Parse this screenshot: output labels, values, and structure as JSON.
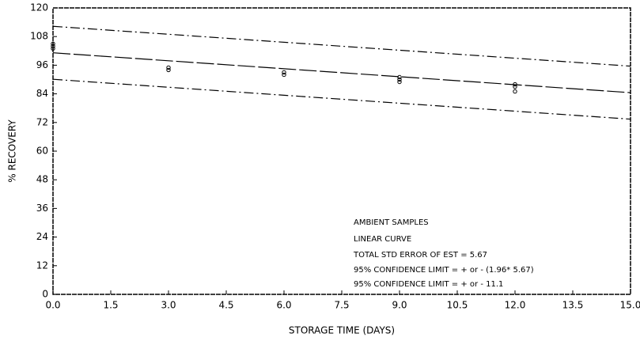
{
  "chart_data": {
    "type": "scatter",
    "x_label": "STORAGE TIME (DAYS)",
    "y_label": "% RECOVERY",
    "xlim": [
      0,
      15
    ],
    "ylim": [
      0,
      120
    ],
    "xticks": [
      {
        "value": 0,
        "label": "0.0"
      },
      {
        "value": 1.5,
        "label": "1.5"
      },
      {
        "value": 3,
        "label": "3.0"
      },
      {
        "value": 4.5,
        "label": "4.5"
      },
      {
        "value": 6,
        "label": "6.0"
      },
      {
        "value": 7.5,
        "label": "7.5"
      },
      {
        "value": 9,
        "label": "9.0"
      },
      {
        "value": 10.5,
        "label": "10.5"
      },
      {
        "value": 12,
        "label": "12.0"
      },
      {
        "value": 13.5,
        "label": "13.5"
      },
      {
        "value": 15,
        "label": "15.0"
      }
    ],
    "yticks": [
      0,
      12,
      24,
      36,
      48,
      60,
      72,
      84,
      96,
      108,
      120
    ],
    "color": "#000000",
    "points": {
      "x": [
        0,
        0,
        0,
        3,
        3,
        6,
        6,
        9,
        9,
        9,
        12,
        12,
        12
      ],
      "values": [
        105,
        104,
        103,
        95,
        94,
        93,
        92,
        91,
        90,
        89,
        88,
        87,
        85
      ]
    },
    "lines": [
      {
        "style": "dashed",
        "x": [
          0,
          15
        ],
        "values": [
          101.2,
          84.5
        ]
      },
      {
        "style": "dashdot",
        "x": [
          0,
          15
        ],
        "values": [
          112.3,
          95.6
        ]
      },
      {
        "style": "dashdot",
        "x": [
          0,
          15
        ],
        "values": [
          90.1,
          73.4
        ]
      }
    ],
    "annotations": [
      "AMBIENT SAMPLES",
      "LINEAR CURVE",
      "TOTAL STD ERROR OF EST =  5.67",
      "95% CONFIDENCE LIMIT = + or - (1.96* 5.67)",
      "95% CONFIDENCE LIMIT = + or -  11.1"
    ]
  }
}
